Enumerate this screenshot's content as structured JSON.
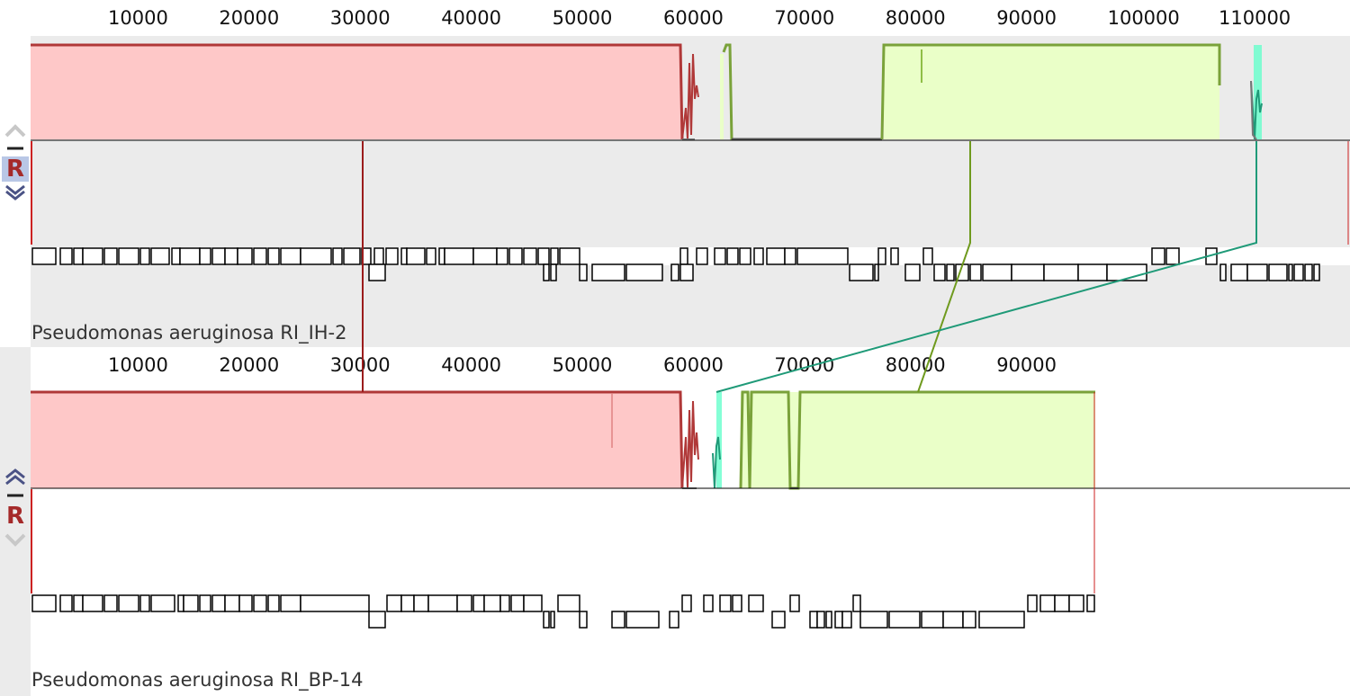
{
  "genomes": [
    {
      "name": "Pseudomonas aeruginosa RI_IH-2",
      "ticks": [
        "10000",
        "20000",
        "30000",
        "40000",
        "50000",
        "60000",
        "70000",
        "80000",
        "90000",
        "100000",
        "110000"
      ],
      "controls": {
        "up": "chevron-up-icon",
        "minus": "minus-icon",
        "reverse_label": "R",
        "down": "chevron-down-icon"
      },
      "selected": true
    },
    {
      "name": "Pseudomonas aeruginosa RI_BP-14",
      "ticks": [
        "10000",
        "20000",
        "30000",
        "40000",
        "50000",
        "60000",
        "70000",
        "80000",
        "90000"
      ],
      "controls": {
        "up": "chevron-up-icon",
        "minus": "minus-icon",
        "reverse_label": "R",
        "down": "chevron-down-icon"
      },
      "selected": false
    }
  ],
  "colors": {
    "block_red": "#fec8c8",
    "block_red_edge": "#b03838",
    "block_green": "#eaffc8",
    "block_green_edge": "#7aa23a",
    "block_teal": "#66ffcc",
    "connector_red": "#9b1c1c",
    "connector_green": "#6f9a1e",
    "connector_teal": "#1f9a78",
    "selected_panel_bg": "#ebebeb"
  }
}
